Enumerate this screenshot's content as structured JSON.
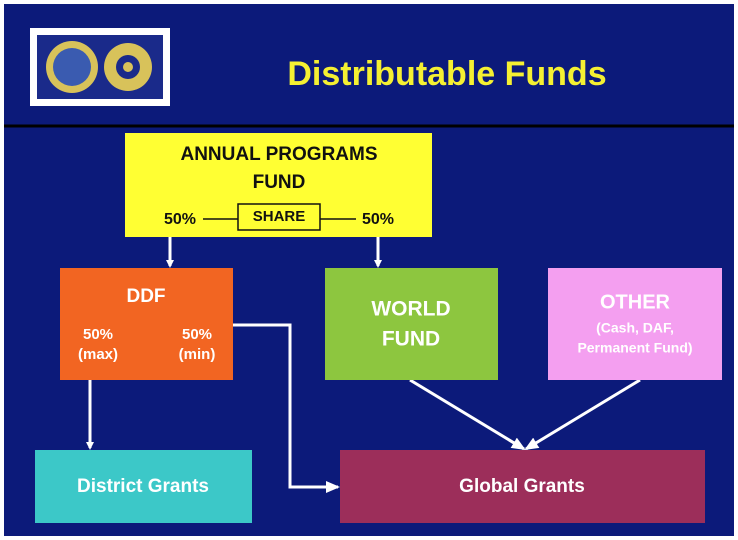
{
  "header": {
    "title": "Distributable Funds"
  },
  "annual_fund": {
    "label": [
      "ANNUAL PROGRAMS",
      "FUND"
    ],
    "left_share": "50%",
    "share": "SHARE",
    "right_share": "50%"
  },
  "ddf": {
    "label": "DDF",
    "left": [
      "50%",
      "(max)"
    ],
    "right": [
      "50%",
      "(min)"
    ]
  },
  "world_fund": {
    "label": [
      "WORLD",
      "FUND"
    ]
  },
  "other": {
    "label": [
      "OTHER",
      "(Cash, DAF,",
      "Permanent Fund)"
    ]
  },
  "district_grants": {
    "label": "District Grants"
  },
  "global_grants": {
    "label": "Global Grants"
  }
}
